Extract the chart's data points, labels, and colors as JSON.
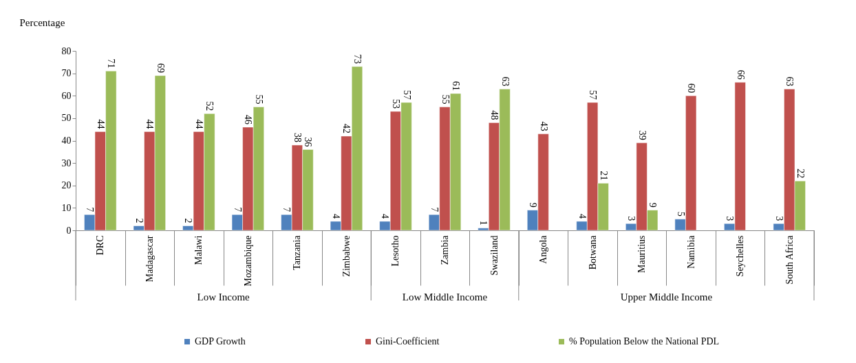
{
  "chart_data": {
    "type": "bar",
    "ylabel": "Percentage",
    "categories": [
      "DRC",
      "Madagascar",
      "Malawi",
      "Mozambique",
      "Tanzania",
      "Zimbabwe",
      "Lesotho",
      "Zambia",
      "Swaziland",
      "Angola",
      "Botwana",
      "Mauritius",
      "Namibia",
      "Seychelles",
      "South Africa"
    ],
    "series": [
      {
        "name": "GDP Growth",
        "color": "#4f81bd",
        "values": [
          7,
          2,
          2,
          7,
          7,
          4,
          4,
          7,
          1,
          9,
          4,
          3,
          5,
          3,
          3
        ]
      },
      {
        "name": "Gini-Coefficient",
        "color": "#c0504d",
        "values": [
          44,
          44,
          44,
          46,
          38,
          42,
          53,
          55,
          48,
          43,
          57,
          39,
          60,
          66,
          63
        ]
      },
      {
        "name": "% Population Below the National PDL",
        "color": "#9bbb59",
        "values": [
          71,
          69,
          52,
          55,
          36,
          73,
          57,
          61,
          63,
          null,
          21,
          9,
          null,
          null,
          22
        ]
      }
    ],
    "ylim": [
      0,
      80
    ],
    "yticks": [
      0,
      10,
      20,
      30,
      40,
      50,
      60,
      70,
      80
    ],
    "data_labels": true,
    "legend": "bottom",
    "annotations": [
      "Low Income",
      "Low Middle Income",
      "Upper Middle Income"
    ]
  }
}
